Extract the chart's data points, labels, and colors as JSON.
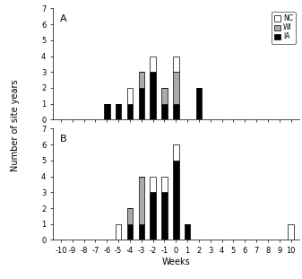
{
  "weeks": [
    -10,
    -9,
    -8,
    -7,
    -6,
    -5,
    -4,
    -3,
    -2,
    -1,
    0,
    1,
    2,
    3,
    4,
    5,
    6,
    7,
    8,
    9,
    10
  ],
  "panel_A": {
    "IA": [
      0,
      0,
      0,
      0,
      1,
      1,
      1,
      2,
      3,
      1,
      1,
      0,
      2,
      0,
      0,
      0,
      0,
      0,
      0,
      0,
      0
    ],
    "WI": [
      0,
      0,
      0,
      0,
      0,
      0,
      0,
      1,
      0,
      1,
      2,
      0,
      0,
      0,
      0,
      0,
      0,
      0,
      0,
      0,
      0
    ],
    "NC": [
      0,
      0,
      0,
      0,
      0,
      0,
      1,
      0,
      1,
      0,
      1,
      0,
      0,
      0,
      0,
      0,
      0,
      0,
      0,
      0,
      0
    ]
  },
  "panel_B": {
    "IA": [
      0,
      0,
      0,
      0,
      0,
      0,
      1,
      1,
      3,
      3,
      5,
      1,
      0,
      0,
      0,
      0,
      0,
      0,
      0,
      0,
      0
    ],
    "WI": [
      0,
      0,
      0,
      0,
      0,
      0,
      1,
      3,
      0,
      0,
      0,
      0,
      0,
      0,
      0,
      0,
      0,
      0,
      0,
      0,
      0
    ],
    "NC": [
      0,
      0,
      0,
      0,
      0,
      1,
      0,
      0,
      1,
      1,
      1,
      0,
      0,
      0,
      0,
      0,
      0,
      0,
      0,
      0,
      1
    ]
  },
  "colors": {
    "IA": "#000000",
    "WI": "#aaaaaa",
    "NC": "#ffffff"
  },
  "ylim": [
    0,
    7
  ],
  "yticks": [
    0,
    1,
    2,
    3,
    4,
    5,
    6,
    7
  ],
  "xlabel": "Weeks",
  "ylabel": "Number of site years",
  "bar_width": 0.5,
  "edgecolor": "#000000"
}
